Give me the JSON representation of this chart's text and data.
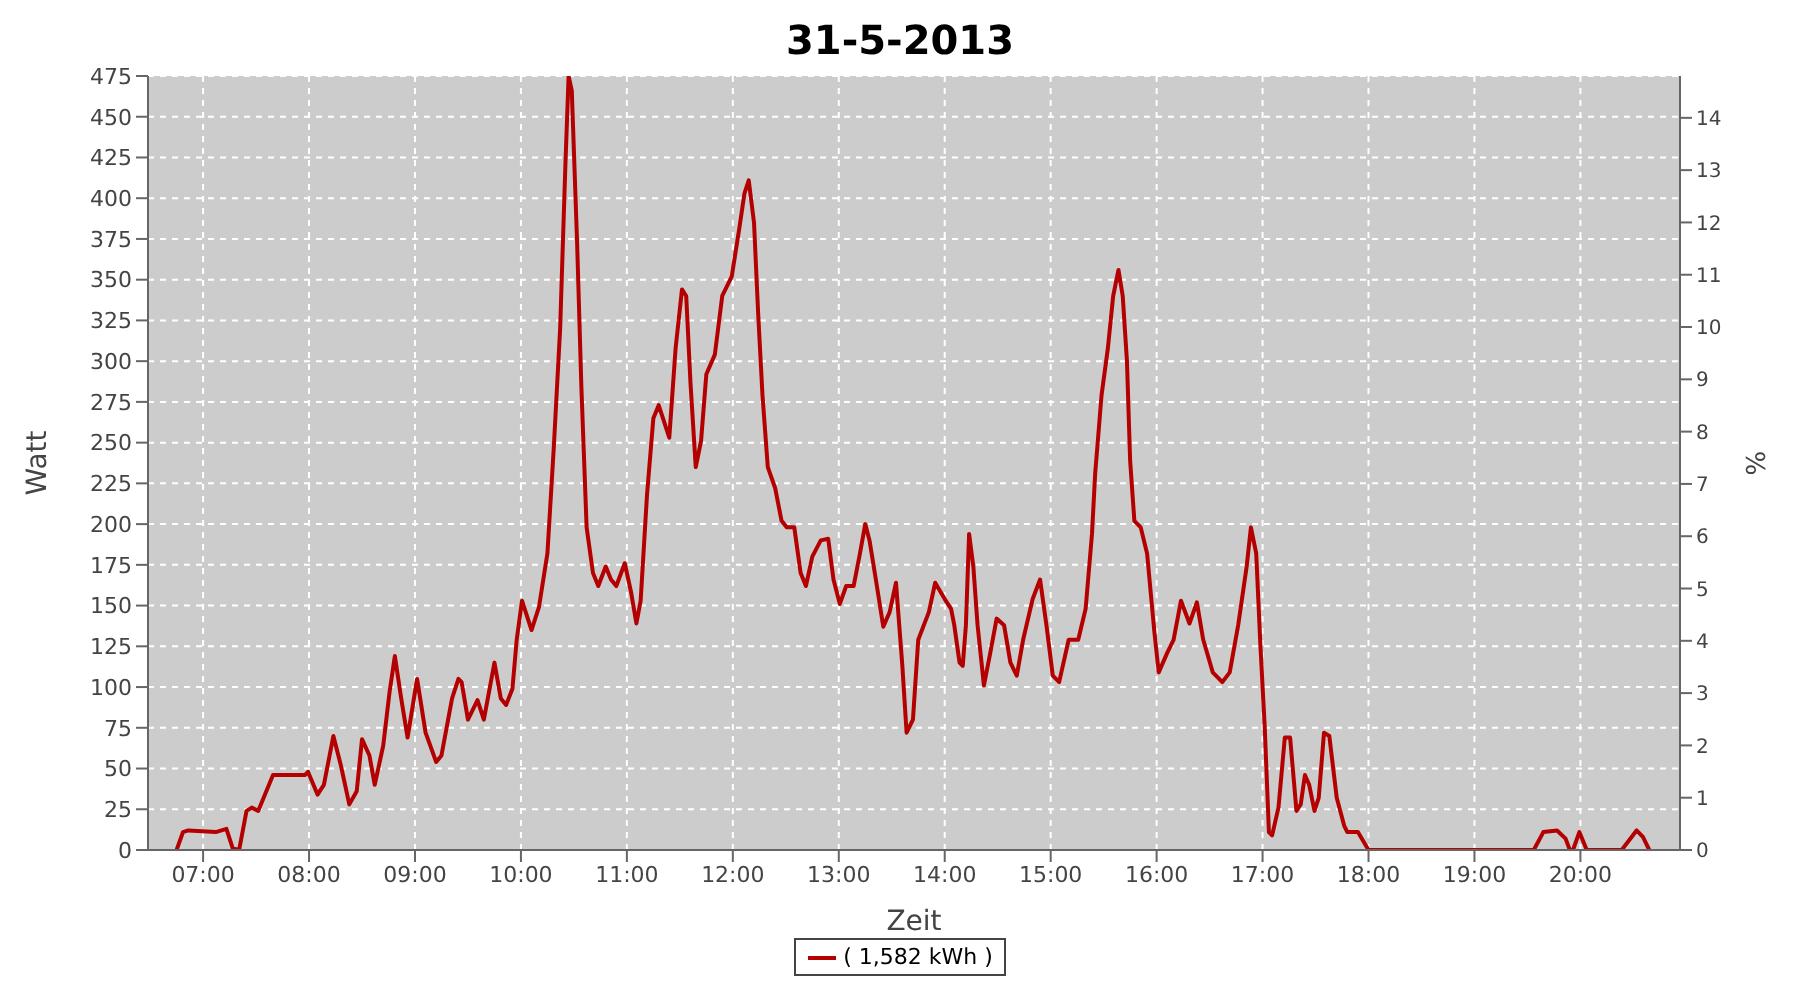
{
  "chart_data": {
    "type": "line",
    "title": "31-5-2013",
    "xlabel": "Zeit",
    "ylabel": "Watt",
    "y2label": "%",
    "x": [
      6.75,
      6.81,
      6.86,
      7.12,
      7.22,
      7.28,
      7.34,
      7.41,
      7.46,
      7.52,
      7.66,
      7.96,
      7.99,
      8.08,
      8.14,
      8.23,
      8.3,
      8.38,
      8.45,
      8.5,
      8.57,
      8.62,
      8.7,
      8.76,
      8.81,
      8.87,
      8.93,
      9.02,
      9.1,
      9.2,
      9.25,
      9.35,
      9.41,
      9.44,
      9.5,
      9.59,
      9.65,
      9.75,
      9.81,
      9.86,
      9.92,
      9.96,
      10.01,
      10.1,
      10.17,
      10.25,
      10.31,
      10.37,
      10.42,
      10.45,
      10.48,
      10.53,
      10.57,
      10.62,
      10.68,
      10.73,
      10.8,
      10.85,
      10.9,
      10.98,
      11.04,
      11.09,
      11.13,
      11.19,
      11.25,
      11.3,
      11.35,
      11.4,
      11.46,
      11.52,
      11.56,
      11.6,
      11.65,
      11.7,
      11.75,
      11.83,
      11.9,
      11.99,
      12.06,
      12.11,
      12.15,
      12.2,
      12.24,
      12.28,
      12.33,
      12.4,
      12.46,
      12.51,
      12.58,
      12.64,
      12.69,
      12.75,
      12.83,
      12.9,
      12.95,
      13.01,
      13.07,
      13.14,
      13.2,
      13.25,
      13.29,
      13.35,
      13.42,
      13.48,
      13.54,
      13.6,
      13.64,
      13.7,
      13.75,
      13.85,
      13.91,
      14.0,
      14.06,
      14.09,
      14.14,
      14.17,
      14.2,
      14.23,
      14.27,
      14.31,
      14.37,
      14.43,
      14.49,
      14.56,
      14.62,
      14.68,
      14.74,
      14.83,
      14.9,
      14.96,
      15.02,
      15.08,
      15.17,
      15.26,
      15.33,
      15.39,
      15.42,
      15.48,
      15.54,
      15.59,
      15.64,
      15.68,
      15.72,
      15.75,
      15.79,
      15.85,
      15.91,
      15.98,
      16.02,
      16.1,
      16.16,
      16.23,
      16.31,
      16.38,
      16.44,
      16.53,
      16.62,
      16.69,
      16.77,
      16.85,
      16.89,
      16.94,
      16.98,
      17.02,
      17.06,
      17.09,
      17.15,
      17.21,
      17.26,
      17.32,
      17.36,
      17.4,
      17.44,
      17.49,
      17.53,
      17.58,
      17.63,
      17.7,
      17.77,
      17.8,
      17.9,
      18.0,
      19.56,
      19.65,
      19.78,
      19.86,
      19.9,
      19.93,
      19.99,
      20.06,
      20.39,
      20.53,
      20.59,
      20.65
    ],
    "series": [
      {
        "name": "( 1,582 kWh )",
        "color": "#b40000",
        "values": [
          0,
          11,
          12,
          11,
          13,
          1,
          0,
          24,
          26,
          24,
          46,
          46,
          48,
          34,
          40,
          70,
          52,
          28,
          36,
          68,
          58,
          40,
          64,
          97,
          119,
          93,
          69,
          105,
          72,
          54,
          58,
          93,
          105,
          103,
          80,
          92,
          80,
          115,
          93,
          89,
          99,
          129,
          153,
          135,
          149,
          182,
          247,
          320,
          421,
          475,
          466,
          373,
          285,
          198,
          170,
          162,
          174,
          166,
          162,
          176,
          158,
          139,
          153,
          218,
          265,
          273,
          263,
          253,
          308,
          344,
          340,
          287,
          235,
          251,
          292,
          304,
          340,
          352,
          381,
          403,
          411,
          385,
          328,
          279,
          235,
          222,
          202,
          198,
          198,
          170,
          162,
          180,
          190,
          191,
          166,
          151,
          162,
          162,
          182,
          200,
          190,
          166,
          137,
          146,
          164,
          113,
          72,
          80,
          129,
          146,
          164,
          154,
          148,
          138,
          115,
          113,
          138,
          194,
          174,
          138,
          101,
          121,
          142,
          138,
          115,
          107,
          129,
          154,
          166,
          138,
          107,
          103,
          129,
          129,
          148,
          194,
          231,
          279,
          308,
          340,
          356,
          340,
          300,
          239,
          202,
          198,
          182,
          133,
          109,
          121,
          129,
          153,
          139,
          152,
          129,
          109,
          103,
          109,
          138,
          174,
          198,
          182,
          125,
          76,
          11,
          9,
          26,
          69,
          69,
          24,
          28,
          46,
          40,
          24,
          32,
          72,
          70,
          32,
          15,
          11,
          11,
          0,
          0,
          11,
          12,
          7,
          0,
          0,
          11,
          0,
          0,
          12,
          8,
          0
        ]
      }
    ],
    "xlim": [
      6.48,
      20.94
    ],
    "xticks": [
      {
        "value": 7,
        "label": "07:00"
      },
      {
        "value": 8,
        "label": "08:00"
      },
      {
        "value": 9,
        "label": "09:00"
      },
      {
        "value": 10,
        "label": "10:00"
      },
      {
        "value": 11,
        "label": "11:00"
      },
      {
        "value": 12,
        "label": "12:00"
      },
      {
        "value": 13,
        "label": "13:00"
      },
      {
        "value": 14,
        "label": "14:00"
      },
      {
        "value": 15,
        "label": "15:00"
      },
      {
        "value": 16,
        "label": "16:00"
      },
      {
        "value": 17,
        "label": "17:00"
      },
      {
        "value": 18,
        "label": "18:00"
      },
      {
        "value": 19,
        "label": "19:00"
      },
      {
        "value": 20,
        "label": "20:00"
      }
    ],
    "ylim": [
      0,
      475
    ],
    "yticks": [
      0,
      25,
      50,
      75,
      100,
      125,
      150,
      175,
      200,
      225,
      250,
      275,
      300,
      325,
      350,
      375,
      400,
      425,
      450,
      475
    ],
    "y2lim": [
      0,
      14.8
    ],
    "y2ticks": [
      0,
      1,
      2,
      3,
      4,
      5,
      6,
      7,
      8,
      9,
      10,
      11,
      12,
      13,
      14
    ],
    "grid": true,
    "legend": "bottom",
    "marker": "none",
    "line_style": "solid"
  }
}
